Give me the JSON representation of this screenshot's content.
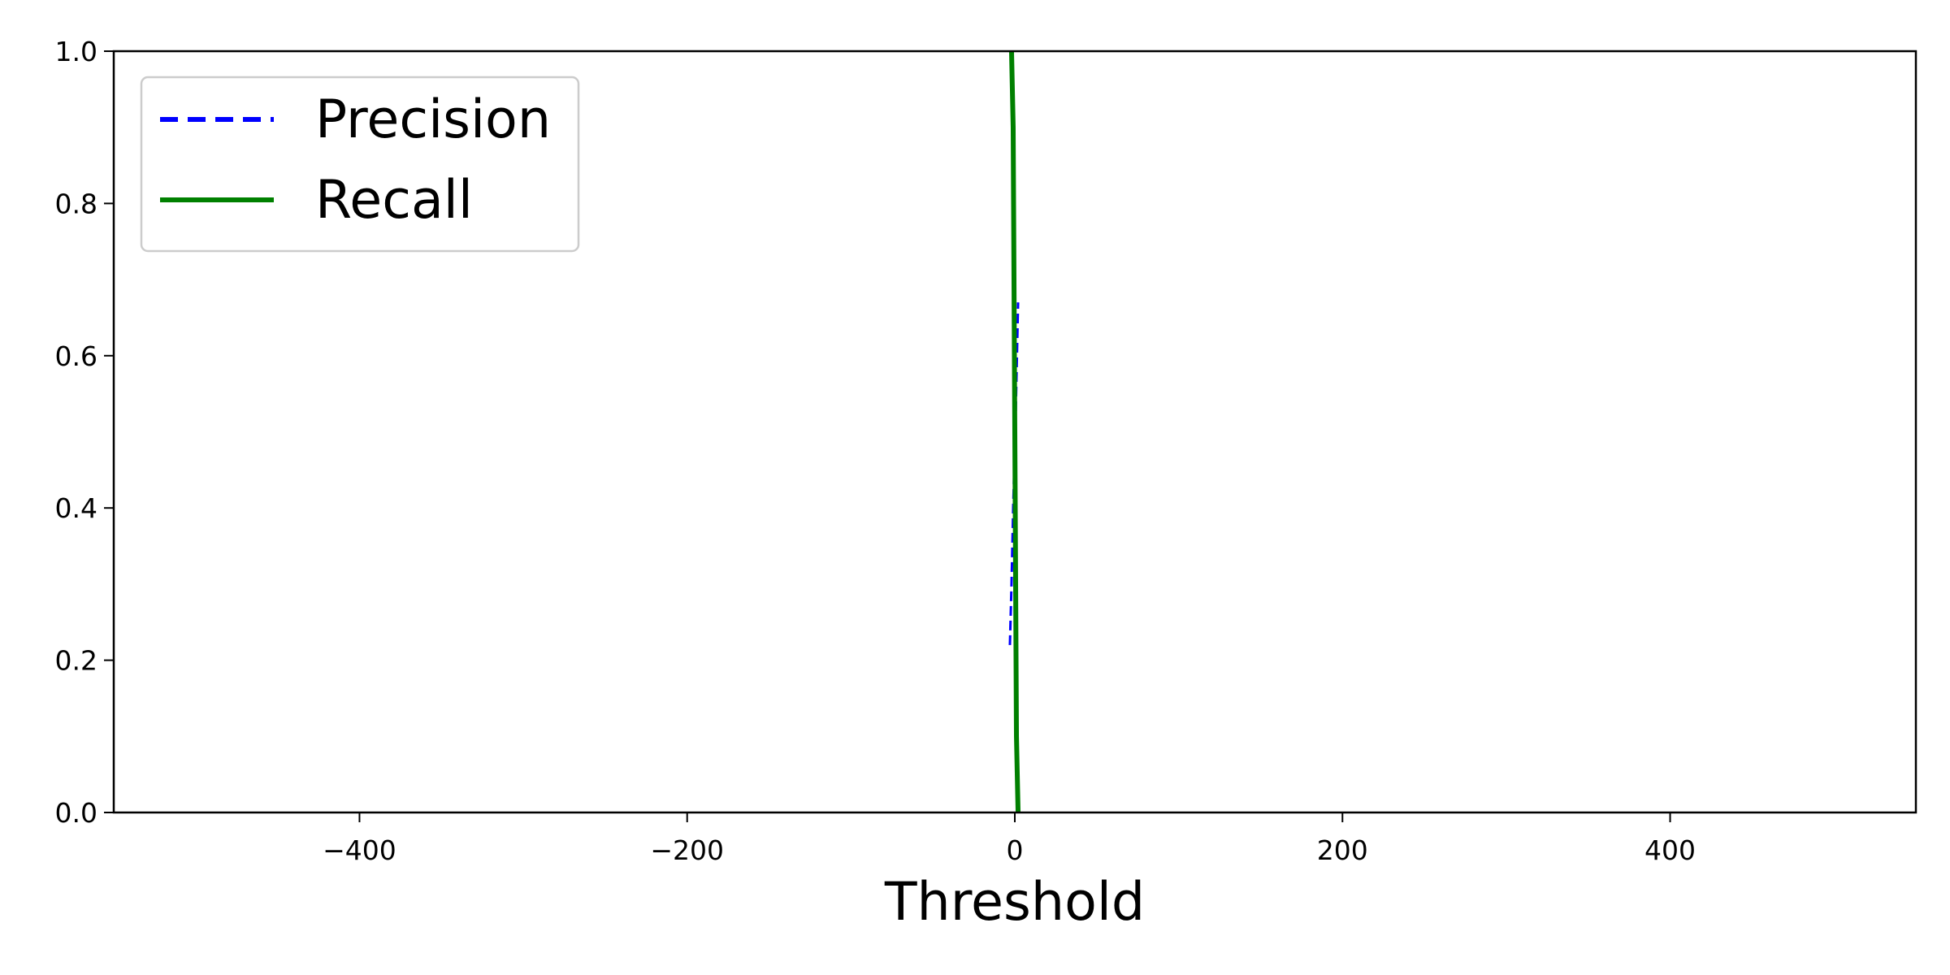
{
  "chart_data": {
    "type": "line",
    "title": "",
    "xlabel": "Threshold",
    "ylabel": "",
    "xlim": [
      -550,
      550
    ],
    "ylim": [
      0.0,
      1.0
    ],
    "xticks": [
      -400,
      -200,
      0,
      200,
      400
    ],
    "xtick_labels": [
      "−400",
      "−200",
      "0",
      "200",
      "400"
    ],
    "yticks": [
      0.0,
      0.2,
      0.4,
      0.6,
      0.8,
      1.0
    ],
    "ytick_labels": [
      "0.0",
      "0.2",
      "0.4",
      "0.6",
      "0.8",
      "1.0"
    ],
    "grid": false,
    "legend_position": "top-left",
    "series": [
      {
        "name": "Precision",
        "color": "#0000ff",
        "style": "dashed",
        "x": [
          -3,
          -2.5,
          -2,
          -1.5,
          -1,
          -0.5,
          0,
          0.5,
          1,
          1.5,
          2
        ],
        "y": [
          0.22,
          0.26,
          0.3,
          0.35,
          0.4,
          0.44,
          0.48,
          0.52,
          0.57,
          0.62,
          0.67
        ]
      },
      {
        "name": "Recall",
        "color": "#008000",
        "style": "solid",
        "x": [
          -2,
          -1,
          0,
          1,
          2
        ],
        "y": [
          1.0,
          0.9,
          0.5,
          0.1,
          0.0
        ]
      }
    ]
  }
}
